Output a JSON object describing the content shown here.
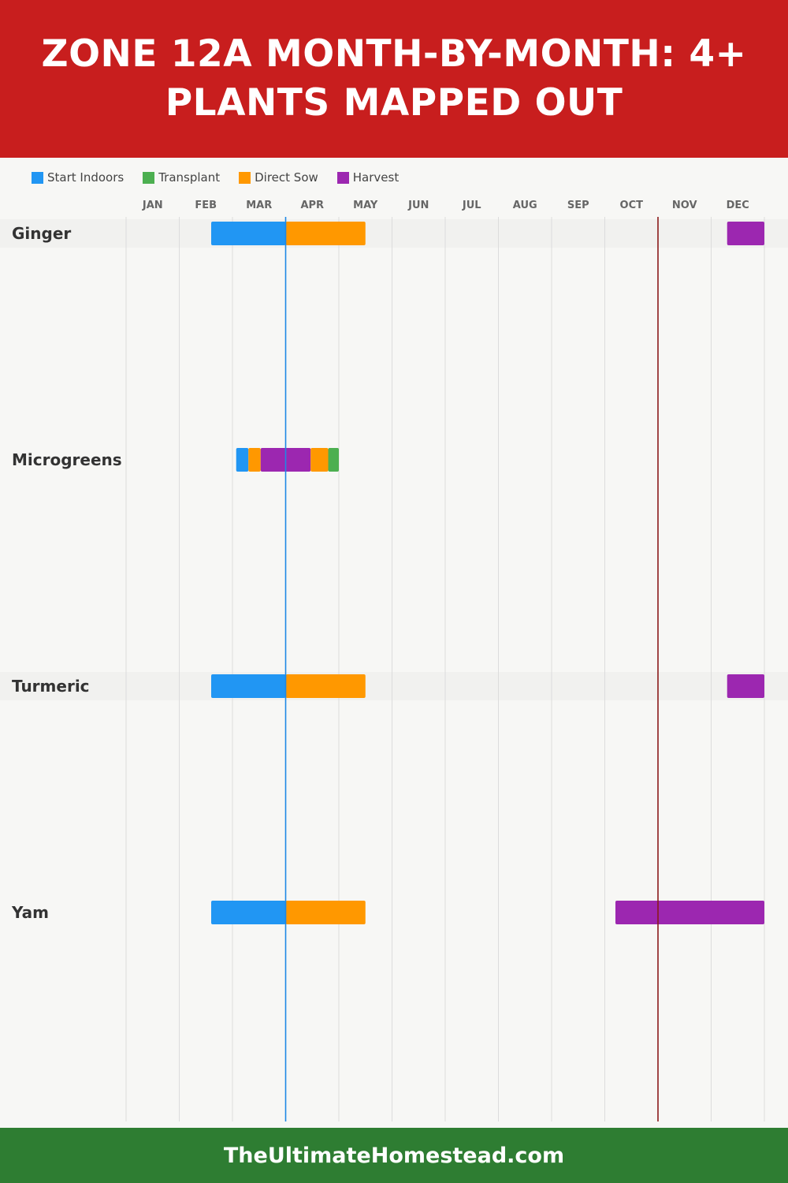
{
  "header": {
    "title": "ZONE 12A MONTH-BY-MONTH: 4+ PLANTS MAPPED OUT"
  },
  "footer": {
    "site": "TheUltimateHomestead.com"
  },
  "colors": {
    "header_bg": "#c81e1e",
    "footer_bg": "#2e7d32",
    "start_indoors": "#2196f3",
    "transplant": "#4caf50",
    "direct_sow": "#ff9800",
    "harvest": "#9c27b0",
    "last_frost_line": "#1e88e5",
    "first_frost_line": "#8b1a1a"
  },
  "legend": [
    {
      "label": "Start Indoors",
      "color": "#2196f3"
    },
    {
      "label": "Transplant",
      "color": "#4caf50"
    },
    {
      "label": "Direct Sow",
      "color": "#ff9800"
    },
    {
      "label": "Harvest",
      "color": "#9c27b0"
    }
  ],
  "chart_data": {
    "type": "gantt",
    "categories": [
      "JAN",
      "FEB",
      "MAR",
      "APR",
      "MAY",
      "JUN",
      "JUL",
      "AUG",
      "SEP",
      "OCT",
      "NOV",
      "DEC"
    ],
    "x_unit": "month (1.0 = start of JAN, 13.0 = end of DEC)",
    "reference_lines": [
      {
        "month": 4.0,
        "color": "#1e88e5"
      },
      {
        "month": 11.0,
        "color": "#8b1a1a"
      }
    ],
    "rows": [
      {
        "name": "Ginger",
        "bars": [
          {
            "activity": "Start Indoors",
            "start": 2.6,
            "end": 4.0
          },
          {
            "activity": "Direct Sow",
            "start": 4.0,
            "end": 5.5
          },
          {
            "activity": "Harvest",
            "start": 12.3,
            "end": 13.0
          }
        ]
      },
      {
        "name": "Microgreens",
        "bars": [
          {
            "activity": "Start Indoors",
            "start": 3.07,
            "end": 3.3
          },
          {
            "activity": "Direct Sow",
            "start": 3.3,
            "end": 3.53
          },
          {
            "activity": "Harvest",
            "start": 3.53,
            "end": 4.47
          },
          {
            "activity": "Direct Sow",
            "start": 4.47,
            "end": 4.8
          },
          {
            "activity": "Transplant",
            "start": 4.8,
            "end": 5.0
          }
        ]
      },
      {
        "name": "Turmeric",
        "bars": [
          {
            "activity": "Start Indoors",
            "start": 2.6,
            "end": 4.0
          },
          {
            "activity": "Direct Sow",
            "start": 4.0,
            "end": 5.5
          },
          {
            "activity": "Harvest",
            "start": 12.3,
            "end": 13.0
          }
        ]
      },
      {
        "name": "Yam",
        "bars": [
          {
            "activity": "Start Indoors",
            "start": 2.6,
            "end": 4.0
          },
          {
            "activity": "Direct Sow",
            "start": 4.0,
            "end": 5.5
          },
          {
            "activity": "Harvest",
            "start": 10.2,
            "end": 13.0
          }
        ]
      }
    ]
  }
}
